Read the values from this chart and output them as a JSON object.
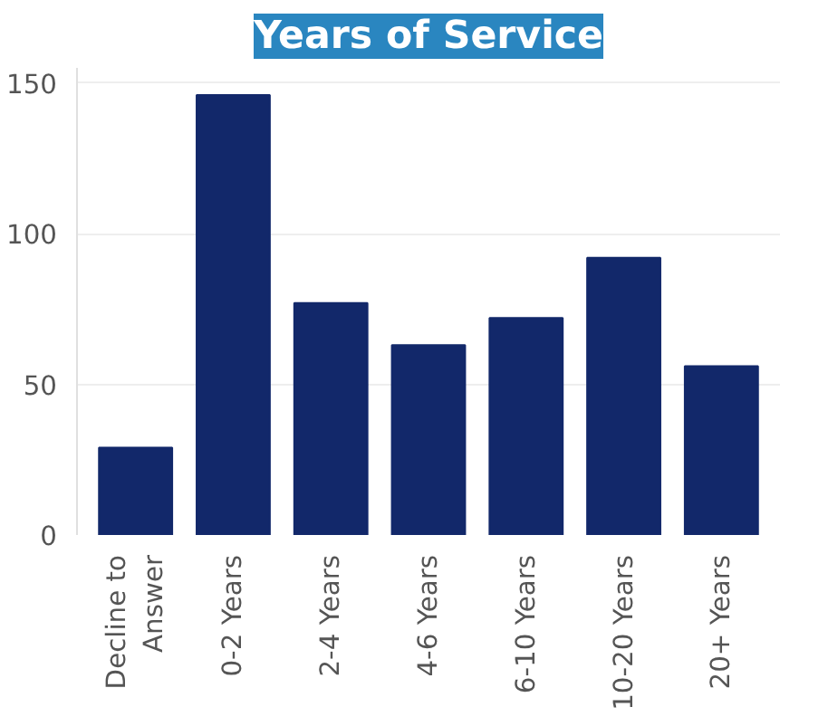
{
  "chart_data": {
    "type": "bar",
    "title": "Years of Service",
    "categories": [
      "Decline to Answer",
      "0-2 Years",
      "2-4 Years",
      "4-6 Years",
      "6-10 Years",
      "10-20 Years",
      "20+ Years"
    ],
    "values": [
      29,
      146,
      77,
      63,
      72,
      92,
      56
    ],
    "color": "#12286a",
    "ylim": [
      0,
      155
    ],
    "yticks": [
      0,
      50,
      100,
      150
    ],
    "grid": "y"
  }
}
